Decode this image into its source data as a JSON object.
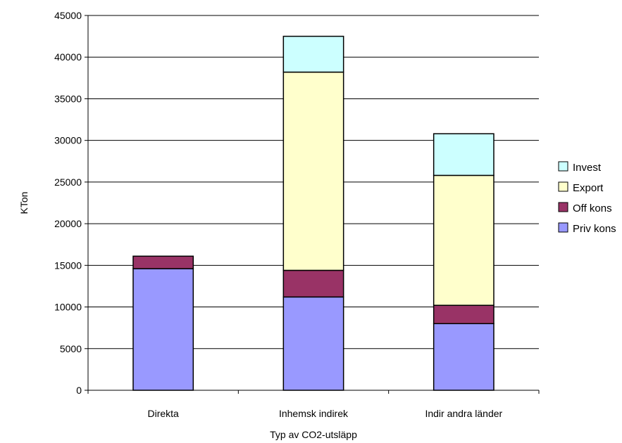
{
  "chart_data": {
    "type": "bar",
    "stacked": true,
    "categories": [
      "Direkta",
      "Inhemsk indirek",
      "Indir andra länder"
    ],
    "series": [
      {
        "name": "Priv kons",
        "values": [
          14600,
          11200,
          8000
        ],
        "color": "#9999ff"
      },
      {
        "name": "Off kons",
        "values": [
          1500,
          3200,
          2200
        ],
        "color": "#993366"
      },
      {
        "name": "Export",
        "values": [
          0,
          23800,
          15600
        ],
        "color": "#ffffcc"
      },
      {
        "name": "Invest",
        "values": [
          0,
          4300,
          5000
        ],
        "color": "#ccffff"
      }
    ],
    "xlabel": "Typ av CO2-utsläpp",
    "ylabel": "KTon",
    "ylim": [
      0,
      45000
    ],
    "yticks": [
      "0",
      "5000",
      "10000",
      "15000",
      "20000",
      "25000",
      "30000",
      "35000",
      "40000",
      "45000"
    ],
    "grid": true,
    "legend_position": "right",
    "gridline_color": "#000000",
    "plot_background": "#ffffff"
  }
}
